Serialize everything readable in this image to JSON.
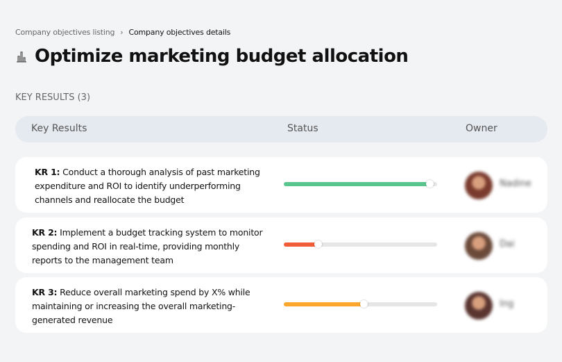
{
  "breadcrumb": {
    "parent": "Company objectives listing",
    "separator": "›",
    "current": "Company objectives details"
  },
  "title": {
    "icon": "building-chart-icon",
    "text": "Optimize marketing budget allocation"
  },
  "section_label": "KEY RESULTS (3)",
  "table": {
    "headers": {
      "key_results": "Key Results",
      "status": "Status",
      "owner": "Owner"
    },
    "rows": [
      {
        "id": "KR 1:",
        "text": "Conduct a thorough analysis of past marketing expenditure and ROI to identify underperforming channels and reallocate the budget",
        "progress": 95,
        "color": "#5ac48e",
        "owner": "Nadine",
        "avatar_color": "#7a3b2e"
      },
      {
        "id": "KR 2:",
        "text": "Implement a budget tracking system to monitor spending and ROI in real-time, providing monthly reports to the management team",
        "progress": 22,
        "color": "#f25c36",
        "owner": "Dai",
        "avatar_color": "#6b4a3a"
      },
      {
        "id": "KR 3:",
        "text": "Reduce overall marketing spend by X% while maintaining or increasing the overall marketing-generated revenue",
        "progress": 52,
        "color": "#fba72d",
        "owner": "Ing",
        "avatar_color": "#5a3530"
      }
    ]
  }
}
